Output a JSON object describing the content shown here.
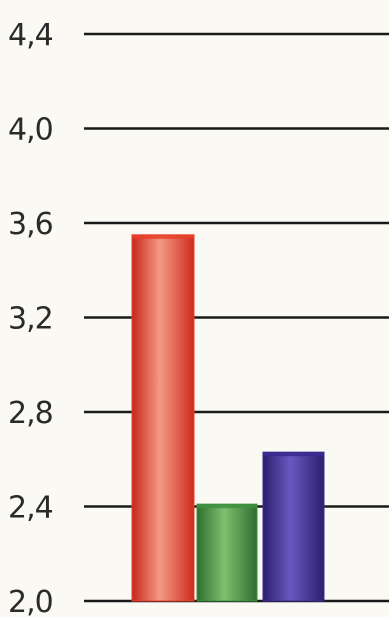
{
  "chart_data": {
    "type": "bar",
    "categories": [
      "",
      "",
      ""
    ],
    "values": [
      3.55,
      2.41,
      2.63
    ],
    "colors": [
      "#e8402a",
      "#3f8f3f",
      "#3a2a8f"
    ],
    "ylim": [
      2.0,
      4.4
    ],
    "yticks": [
      2.0,
      2.4,
      2.8,
      3.2,
      3.6,
      4.0,
      4.4
    ],
    "ytick_labels": [
      "2,0",
      "2,4",
      "2,8",
      "3,2",
      "3,6",
      "4,0",
      "4,4"
    ],
    "grid": true,
    "legend": "none",
    "title": "",
    "xlabel": "",
    "ylabel": ""
  }
}
